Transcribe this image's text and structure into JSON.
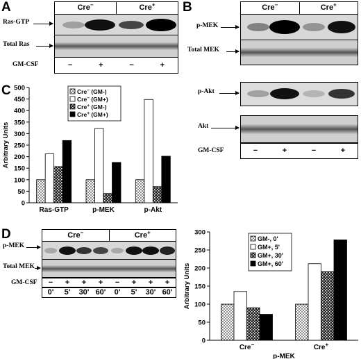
{
  "panels": {
    "A": {
      "letter": "A",
      "groups": [
        "Cre",
        "Cre"
      ],
      "group_sups": [
        "−",
        "+"
      ],
      "rows": [
        "Ras-GTP",
        "Total Ras"
      ],
      "treatment_label": "GM-CSF",
      "treatment": [
        "−",
        "+",
        "−",
        "+"
      ]
    },
    "B": {
      "letter": "B",
      "groups": [
        "Cre",
        "Cre"
      ],
      "group_sups": [
        "−",
        "+"
      ],
      "rows": [
        "p-MEK",
        "Total MEK",
        "p-Akt",
        "Akt"
      ],
      "treatment_label": "GM-CSF",
      "treatment": [
        "−",
        "+",
        "−",
        "+"
      ]
    },
    "C": {
      "letter": "C"
    },
    "D": {
      "letter": "D",
      "groups": [
        "Cre",
        "Cre"
      ],
      "group_sups": [
        "−",
        "+"
      ],
      "rows": [
        "p-MEK",
        "Total MEK"
      ],
      "treatment_label": "GM-CSF",
      "treatment": [
        "−",
        "+",
        "+",
        "+",
        "−",
        "+",
        "+",
        "+"
      ],
      "times": [
        "0'",
        "5'",
        "30'",
        "60'",
        "0'",
        "5'",
        "30'",
        "60'"
      ]
    }
  },
  "chart_data": [
    {
      "type": "bar",
      "panel": "C",
      "categories": [
        "Ras-GTP",
        "p-MEK",
        "p-Akt"
      ],
      "series": [
        {
          "name": "Cre− (GM-)",
          "values": [
            100,
            100,
            100
          ],
          "pattern": "dots"
        },
        {
          "name": "Cre− (GM+)",
          "values": [
            212,
            322,
            448
          ],
          "pattern": "white"
        },
        {
          "name": "Cre+ (GM-)",
          "values": [
            157,
            40,
            70
          ],
          "pattern": "checker"
        },
        {
          "name": "Cre+ (GM+)",
          "values": [
            270,
            175,
            202
          ],
          "pattern": "black"
        }
      ],
      "ylabel": "Arbitrary Units",
      "ylim": [
        0,
        500
      ],
      "yticks": [
        0,
        50,
        100,
        150,
        200,
        250,
        300,
        350,
        400,
        450,
        500
      ],
      "legend": "top-left"
    },
    {
      "type": "bar",
      "panel": "D",
      "categories": [
        "Cre−",
        "Cre+"
      ],
      "series": [
        {
          "name": "GM-, 0'",
          "values": [
            100,
            100
          ],
          "pattern": "dots"
        },
        {
          "name": "GM+, 5'",
          "values": [
            135,
            212
          ],
          "pattern": "white"
        },
        {
          "name": "GM+, 30'",
          "values": [
            90,
            190
          ],
          "pattern": "checker"
        },
        {
          "name": "GM+, 60'",
          "values": [
            72,
            278
          ],
          "pattern": "black"
        }
      ],
      "ylabel": "Arbitrary Units",
      "xlabel": "p-MEK",
      "ylim": [
        0,
        300
      ],
      "yticks": [
        0,
        50,
        100,
        150,
        200,
        250,
        300
      ],
      "legend": "top-left"
    }
  ]
}
